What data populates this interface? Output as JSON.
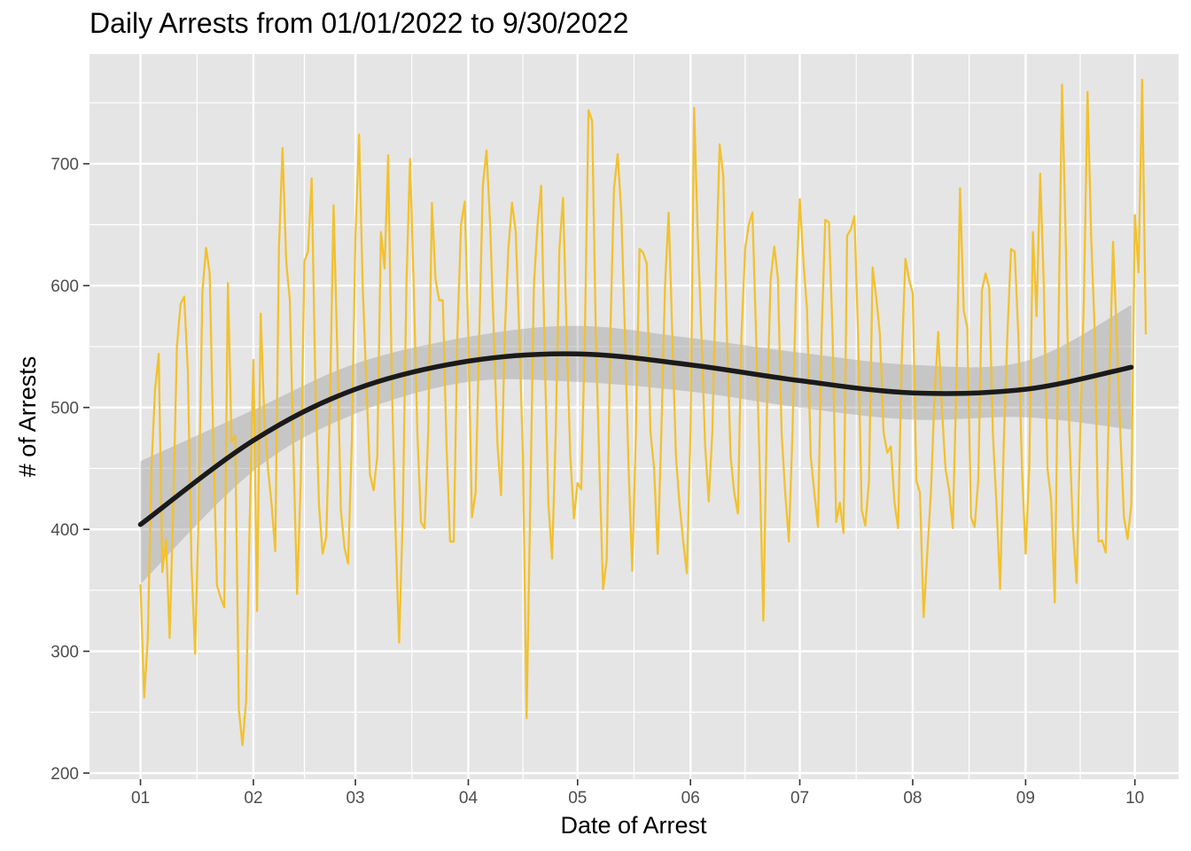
{
  "chart_data": {
    "type": "line",
    "title": "Daily Arrests from 01/01/2022 to 9/30/2022",
    "xlabel": "Date of Arrest",
    "ylabel": "# of Arrests",
    "x_ticks": [
      "01",
      "02",
      "03",
      "04",
      "05",
      "06",
      "07",
      "08",
      "09",
      "10"
    ],
    "y_ticks": [
      200,
      300,
      400,
      500,
      600,
      700
    ],
    "xlim": [
      "2021-12-18",
      "2022-10-13"
    ],
    "ylim": [
      195,
      790
    ],
    "grid": true,
    "legend": "none",
    "colors": {
      "series": "#F2C12E",
      "smooth": "#1a1a1a",
      "band": "#999999",
      "panel": "#E5E5E5",
      "grid": "#FFFFFF"
    },
    "series": [
      {
        "start_date": "2022-01-01",
        "values": [
          355,
          262,
          310,
          450,
          515,
          544,
          365,
          392,
          311,
          420,
          550,
          585,
          591,
          530,
          370,
          298,
          420,
          595,
          631,
          610,
          470,
          354,
          344,
          336,
          602,
          472,
          477,
          252,
          223,
          260,
          410,
          539,
          333,
          577,
          490,
          450,
          420,
          382,
          630,
          713,
          620,
          588,
          460,
          347,
          440,
          620,
          628,
          688,
          520,
          420,
          380,
          394,
          500,
          666,
          550,
          416,
          385,
          372,
          470,
          640,
          724,
          600,
          520,
          445,
          432,
          460,
          644,
          614,
          707,
          520,
          400,
          307,
          410,
          600,
          704,
          600,
          480,
          406,
          401,
          480,
          668,
          605,
          588,
          588,
          470,
          390,
          390,
          560,
          650,
          669,
          560,
          410,
          430,
          560,
          683,
          711,
          650,
          560,
          470,
          428,
          560,
          630,
          668,
          645,
          560,
          460,
          245,
          420,
          600,
          650,
          682,
          540,
          420,
          376,
          480,
          630,
          672,
          560,
          460,
          409,
          438,
          433,
          560,
          744,
          735,
          560,
          450,
          351,
          375,
          560,
          680,
          708,
          660,
          560,
          450,
          366,
          480,
          630,
          627,
          618,
          480,
          450,
          380,
          480,
          600,
          660,
          560,
          460,
          420,
          390,
          364,
          480,
          746,
          640,
          560,
          470,
          423,
          480,
          610,
          716,
          690,
          560,
          460,
          430,
          413,
          560,
          630,
          650,
          660,
          560,
          450,
          325,
          500,
          605,
          632,
          606,
          480,
          430,
          390,
          480,
          600,
          671,
          620,
          580,
          460,
          430,
          402,
          560,
          654,
          652,
          560,
          406,
          422,
          397,
          641,
          646,
          657,
          560,
          416,
          403,
          440,
          615,
          590,
          560,
          480,
          463,
          468,
          422,
          401,
          540,
          622,
          605,
          594,
          440,
          430,
          328,
          380,
          430,
          510,
          562,
          500,
          450,
          432,
          401,
          520,
          680,
          580,
          565,
          410,
          402,
          440,
          596,
          610,
          598,
          480,
          420,
          351,
          470,
          560,
          630,
          628,
          560,
          450,
          380,
          450,
          644,
          575,
          692,
          600,
          450,
          425,
          340,
          560,
          765,
          640,
          480,
          400,
          356,
          480,
          590,
          759,
          640,
          560,
          390,
          391,
          381,
          520,
          636,
          560,
          480,
          410,
          392,
          420,
          658,
          611,
          769,
          560
        ]
      }
    ],
    "smooth": {
      "dates": [
        "2022-01-01",
        "2022-02-01",
        "2022-03-01",
        "2022-04-01",
        "2022-05-01",
        "2022-06-01",
        "2022-07-01",
        "2022-08-01",
        "2022-09-01",
        "2022-09-30"
      ],
      "fit": [
        404,
        473,
        515,
        538,
        544,
        535,
        522,
        512,
        515,
        533
      ],
      "lower": [
        355,
        448,
        495,
        521,
        521,
        513,
        500,
        490,
        492,
        482
      ],
      "upper": [
        456,
        498,
        536,
        558,
        567,
        557,
        545,
        535,
        538,
        584
      ]
    }
  }
}
